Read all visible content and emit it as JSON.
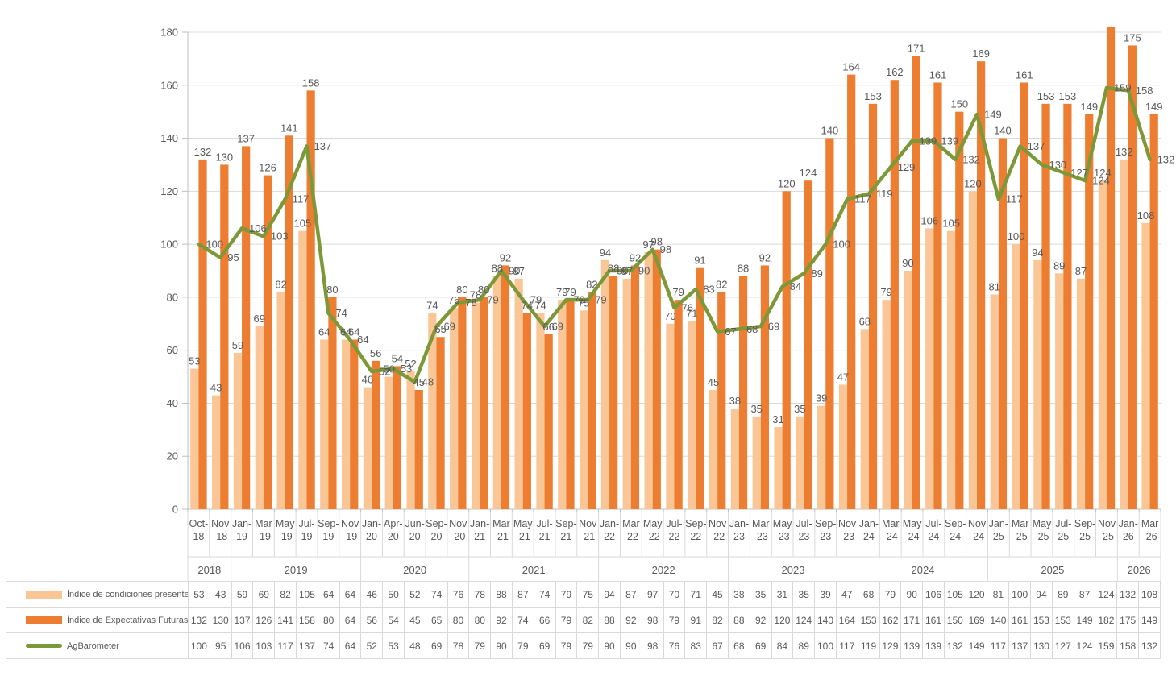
{
  "chart_data": {
    "type": "bar+line combo",
    "title": "",
    "categories": [
      "Oct-18",
      "Nov-18",
      "Jan-19",
      "Mar-19",
      "May-19",
      "Jul-19",
      "Sep-19",
      "Nov-19",
      "Jan-20",
      "Apr-20",
      "Jun-20",
      "Sep-20",
      "Nov-20",
      "Jan-21",
      "Mar-21",
      "May-21",
      "Jul-21",
      "Sep-21",
      "Nov-21",
      "Jan-22",
      "Mar-22",
      "May-22",
      "Jul-22",
      "Sep-22",
      "Nov-22",
      "Jan-23",
      "Mar-23",
      "May-23",
      "Jul-23",
      "Sep-23",
      "Nov-23",
      "Jan-24",
      "Mar-24",
      "May-24",
      "Jul-24",
      "Sep-24",
      "Nov-24",
      "Jan-25",
      "Mar-25",
      "May-25",
      "Jul-25",
      "Sep-25",
      "Nov-25",
      "Jan-26",
      "Mar-26"
    ],
    "category_display": [
      [
        "Oct-",
        "18"
      ],
      [
        "Nov",
        "-18"
      ],
      [
        "Jan-",
        "19"
      ],
      [
        "Mar",
        "-19"
      ],
      [
        "May",
        "-19"
      ],
      [
        "Jul-",
        "19"
      ],
      [
        "Sep-",
        "19"
      ],
      [
        "Nov",
        "-19"
      ],
      [
        "Jan-",
        "20"
      ],
      [
        "Apr-",
        "20"
      ],
      [
        "Jun-",
        "20"
      ],
      [
        "Sep-",
        "20"
      ],
      [
        "Nov",
        "-20"
      ],
      [
        "Jan-",
        "21"
      ],
      [
        "Mar",
        "-21"
      ],
      [
        "May",
        "-21"
      ],
      [
        "Jul-",
        "21"
      ],
      [
        "Sep-",
        "21"
      ],
      [
        "Nov",
        "-21"
      ],
      [
        "Jan-",
        "22"
      ],
      [
        "Mar",
        "-22"
      ],
      [
        "May",
        "-22"
      ],
      [
        "Jul-",
        "22"
      ],
      [
        "Sep-",
        "22"
      ],
      [
        "Nov",
        "-22"
      ],
      [
        "Jan-",
        "23"
      ],
      [
        "Mar",
        "-23"
      ],
      [
        "May",
        "-23"
      ],
      [
        "Jul-",
        "23"
      ],
      [
        "Sep-",
        "23"
      ],
      [
        "Nov",
        "-23"
      ],
      [
        "Jan-",
        "24"
      ],
      [
        "Mar",
        "-24"
      ],
      [
        "May",
        "-24"
      ],
      [
        "Jul-",
        "24"
      ],
      [
        "Sep-",
        "24"
      ],
      [
        "Nov",
        "-24"
      ],
      [
        "Jan-",
        "25"
      ],
      [
        "Mar",
        "-25"
      ],
      [
        "May",
        "-25"
      ],
      [
        "Jul-",
        "25"
      ],
      [
        "Sep-",
        "25"
      ],
      [
        "Nov",
        "-25"
      ],
      [
        "Jan-",
        "26"
      ],
      [
        "Mar",
        "-26"
      ]
    ],
    "year_groups": [
      {
        "label": "2018",
        "span": 2
      },
      {
        "label": "2019",
        "span": 6
      },
      {
        "label": "2020",
        "span": 5
      },
      {
        "label": "2021",
        "span": 6
      },
      {
        "label": "2022",
        "span": 6
      },
      {
        "label": "2023",
        "span": 6
      },
      {
        "label": "2024",
        "span": 6
      },
      {
        "label": "2025",
        "span": 6
      },
      {
        "label": "2026",
        "span": 2
      }
    ],
    "series": [
      {
        "name": "Índice de condiciones presentes",
        "type": "bar",
        "color": "#FAC696",
        "values": [
          53,
          43,
          59,
          69,
          82,
          105,
          64,
          64,
          46,
          50,
          52,
          74,
          76,
          78,
          88,
          87,
          74,
          79,
          75,
          94,
          87,
          97,
          70,
          71,
          45,
          38,
          35,
          31,
          35,
          39,
          47,
          68,
          79,
          90,
          106,
          105,
          120,
          81,
          100,
          94,
          89,
          87,
          124,
          132,
          108
        ]
      },
      {
        "name": "Índice de Expectativas Futuras",
        "type": "bar",
        "color": "#ED7D31",
        "values": [
          132,
          130,
          137,
          126,
          141,
          158,
          80,
          64,
          56,
          54,
          45,
          65,
          80,
          80,
          92,
          74,
          66,
          79,
          82,
          88,
          92,
          98,
          79,
          91,
          82,
          88,
          92,
          120,
          124,
          140,
          164,
          153,
          162,
          171,
          161,
          150,
          169,
          140,
          161,
          153,
          153,
          149,
          182,
          175,
          149
        ]
      },
      {
        "name": "AgBarometer",
        "type": "line",
        "color": "#7C9838",
        "values": [
          100,
          95,
          106,
          103,
          117,
          137,
          74,
          64,
          52,
          53,
          48,
          69,
          78,
          79,
          90,
          79,
          69,
          79,
          79,
          90,
          90,
          98,
          76,
          83,
          67,
          68,
          69,
          84,
          89,
          100,
          117,
          119,
          129,
          139,
          139,
          132,
          149,
          117,
          137,
          130,
          127,
          124,
          159,
          158,
          132
        ]
      }
    ],
    "ylim": [
      0,
      180
    ],
    "yticks": [
      0,
      20,
      40,
      60,
      80,
      100,
      120,
      140,
      160,
      180
    ],
    "grid": true,
    "data_labels": true,
    "legend_position": "table-left",
    "colors": {
      "gridline": "#d9d9d9",
      "axis": "#bfbfbf",
      "label_text": "#595959",
      "table_border": "#d9d9d9"
    }
  }
}
